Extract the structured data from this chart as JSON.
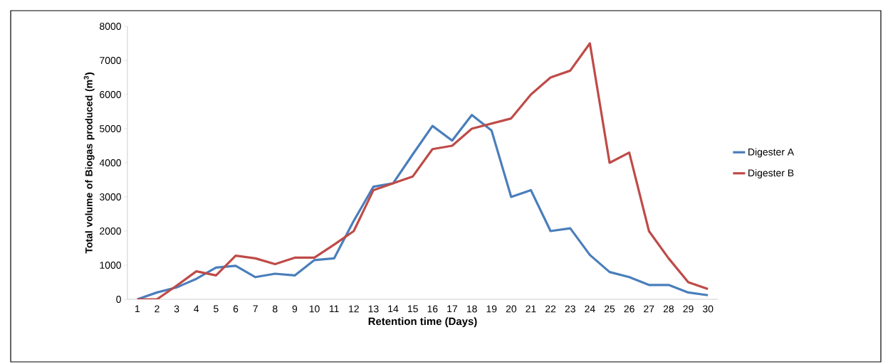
{
  "chart_data": {
    "type": "line",
    "xlabel": "Retention time (Days)",
    "ylabel": "Total volume of Biogas produced (m$^{3}$)",
    "categories": [
      "1",
      "2",
      "3",
      "4",
      "5",
      "6",
      "7",
      "8",
      "9",
      "10",
      "11",
      "12",
      "13",
      "14",
      "15",
      "16",
      "17",
      "18",
      "19",
      "20",
      "21",
      "22",
      "23",
      "24",
      "25",
      "26",
      "27",
      "28",
      "29",
      "30"
    ],
    "series": [
      {
        "name": "Digester A",
        "color": "#4a7ebb",
        "values": [
          0,
          200,
          350,
          600,
          930,
          980,
          650,
          750,
          700,
          1150,
          1200,
          2300,
          3300,
          3400,
          4250,
          5080,
          4650,
          5400,
          4950,
          3000,
          3200,
          2000,
          2080,
          1300,
          800,
          650,
          420,
          420,
          200,
          120
        ]
      },
      {
        "name": "Digester B",
        "color": "#be4b48",
        "values": [
          0,
          0,
          400,
          820,
          700,
          1280,
          1200,
          1030,
          1220,
          1220,
          1600,
          2000,
          3200,
          3400,
          3600,
          4400,
          4500,
          5000,
          5150,
          5300,
          6000,
          6500,
          6700,
          7500,
          4000,
          4300,
          2000,
          1200,
          500,
          300
        ]
      }
    ],
    "ylim": [
      0,
      8000
    ],
    "yticks": [
      0,
      1000,
      2000,
      3000,
      4000,
      5000,
      6000,
      7000,
      8000
    ],
    "legend": "right",
    "marker": "none",
    "line_style": "solid",
    "grid": false
  }
}
